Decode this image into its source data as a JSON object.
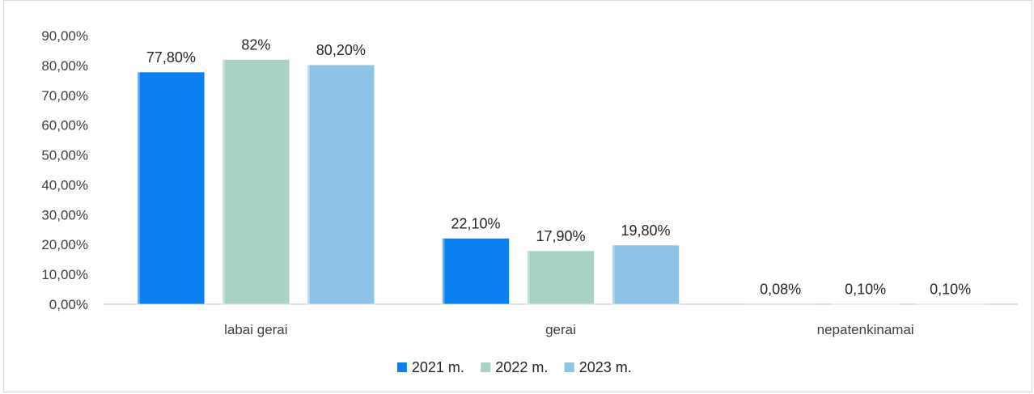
{
  "chart_data": {
    "type": "bar",
    "title": "",
    "xlabel": "",
    "ylabel": "",
    "categories": [
      "labai gerai",
      "gerai",
      "nepatenkinamai"
    ],
    "series": [
      {
        "name": "2021 m.",
        "color": "#0a7ff0",
        "values": [
          77.8,
          22.1,
          0.08
        ],
        "labels": [
          "77,80%",
          "22,10%",
          "0,08%"
        ]
      },
      {
        "name": "2022 m.",
        "color": "#a9d2c6",
        "values": [
          82,
          17.9,
          0.1
        ],
        "labels": [
          "82%",
          "17,90%",
          "0,10%"
        ]
      },
      {
        "name": "2023 m.",
        "color": "#8fc3e6",
        "values": [
          80.2,
          19.8,
          0.1
        ],
        "labels": [
          "80,20%",
          "19,80%",
          "0,10%"
        ]
      }
    ],
    "ylim": [
      0,
      90
    ],
    "yticks": [
      "0,00%",
      "10,00%",
      "20,00%",
      "30,00%",
      "40,00%",
      "50,00%",
      "60,00%",
      "70,00%",
      "80,00%",
      "90,00%"
    ],
    "grid": false,
    "legend_position": "bottom"
  }
}
